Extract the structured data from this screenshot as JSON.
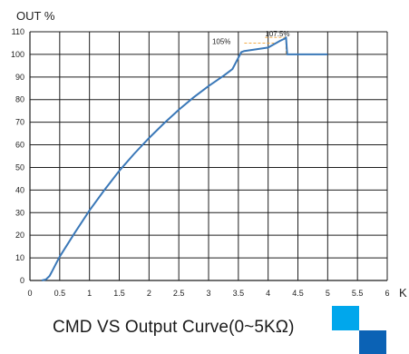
{
  "chart_data": {
    "type": "line",
    "ylabel": "OUT %",
    "xlabel": "K",
    "x_ticks": [
      "0",
      "0.5",
      "1",
      "1.5",
      "2",
      "2.5",
      "3",
      "3.5",
      "4",
      "4.5",
      "5",
      "5.5",
      "6"
    ],
    "y_ticks": [
      "0",
      "10",
      "20",
      "30",
      "40",
      "50",
      "60",
      "70",
      "80",
      "90",
      "100",
      "110"
    ],
    "xlim": [
      0,
      6
    ],
    "ylim": [
      0,
      110
    ],
    "grid": true,
    "series": [
      {
        "color": "#3a78b8",
        "points": [
          [
            0.2,
            0
          ],
          [
            0.27,
            0.5
          ],
          [
            0.33,
            2
          ],
          [
            0.38,
            4.5
          ],
          [
            0.45,
            8
          ],
          [
            0.5,
            10.5
          ],
          [
            0.75,
            21
          ],
          [
            1.0,
            31
          ],
          [
            1.25,
            40
          ],
          [
            1.5,
            48.5
          ],
          [
            1.75,
            56
          ],
          [
            2.0,
            63
          ],
          [
            2.25,
            69.5
          ],
          [
            2.5,
            75.5
          ],
          [
            2.75,
            81
          ],
          [
            3.0,
            86
          ],
          [
            3.25,
            90.5
          ],
          [
            3.4,
            93.5
          ],
          [
            3.55,
            101
          ],
          [
            3.6,
            101.5
          ],
          [
            4.0,
            103
          ],
          [
            4.2,
            106
          ],
          [
            4.28,
            107
          ],
          [
            4.3,
            107.5
          ],
          [
            4.32,
            100
          ],
          [
            5.0,
            100
          ]
        ]
      }
    ],
    "annotations": [
      {
        "text": "107.5%",
        "x": 4.3,
        "y": 107.5
      },
      {
        "text": "105%",
        "x": 4.05,
        "y": 105
      }
    ]
  },
  "caption": "CMD VS Output Curve(0~5KΩ)",
  "colors": {
    "line": "#3a78b8",
    "guide": "#f0a030",
    "accent_light": "#00a7ec",
    "accent_dark": "#0b62b5"
  }
}
